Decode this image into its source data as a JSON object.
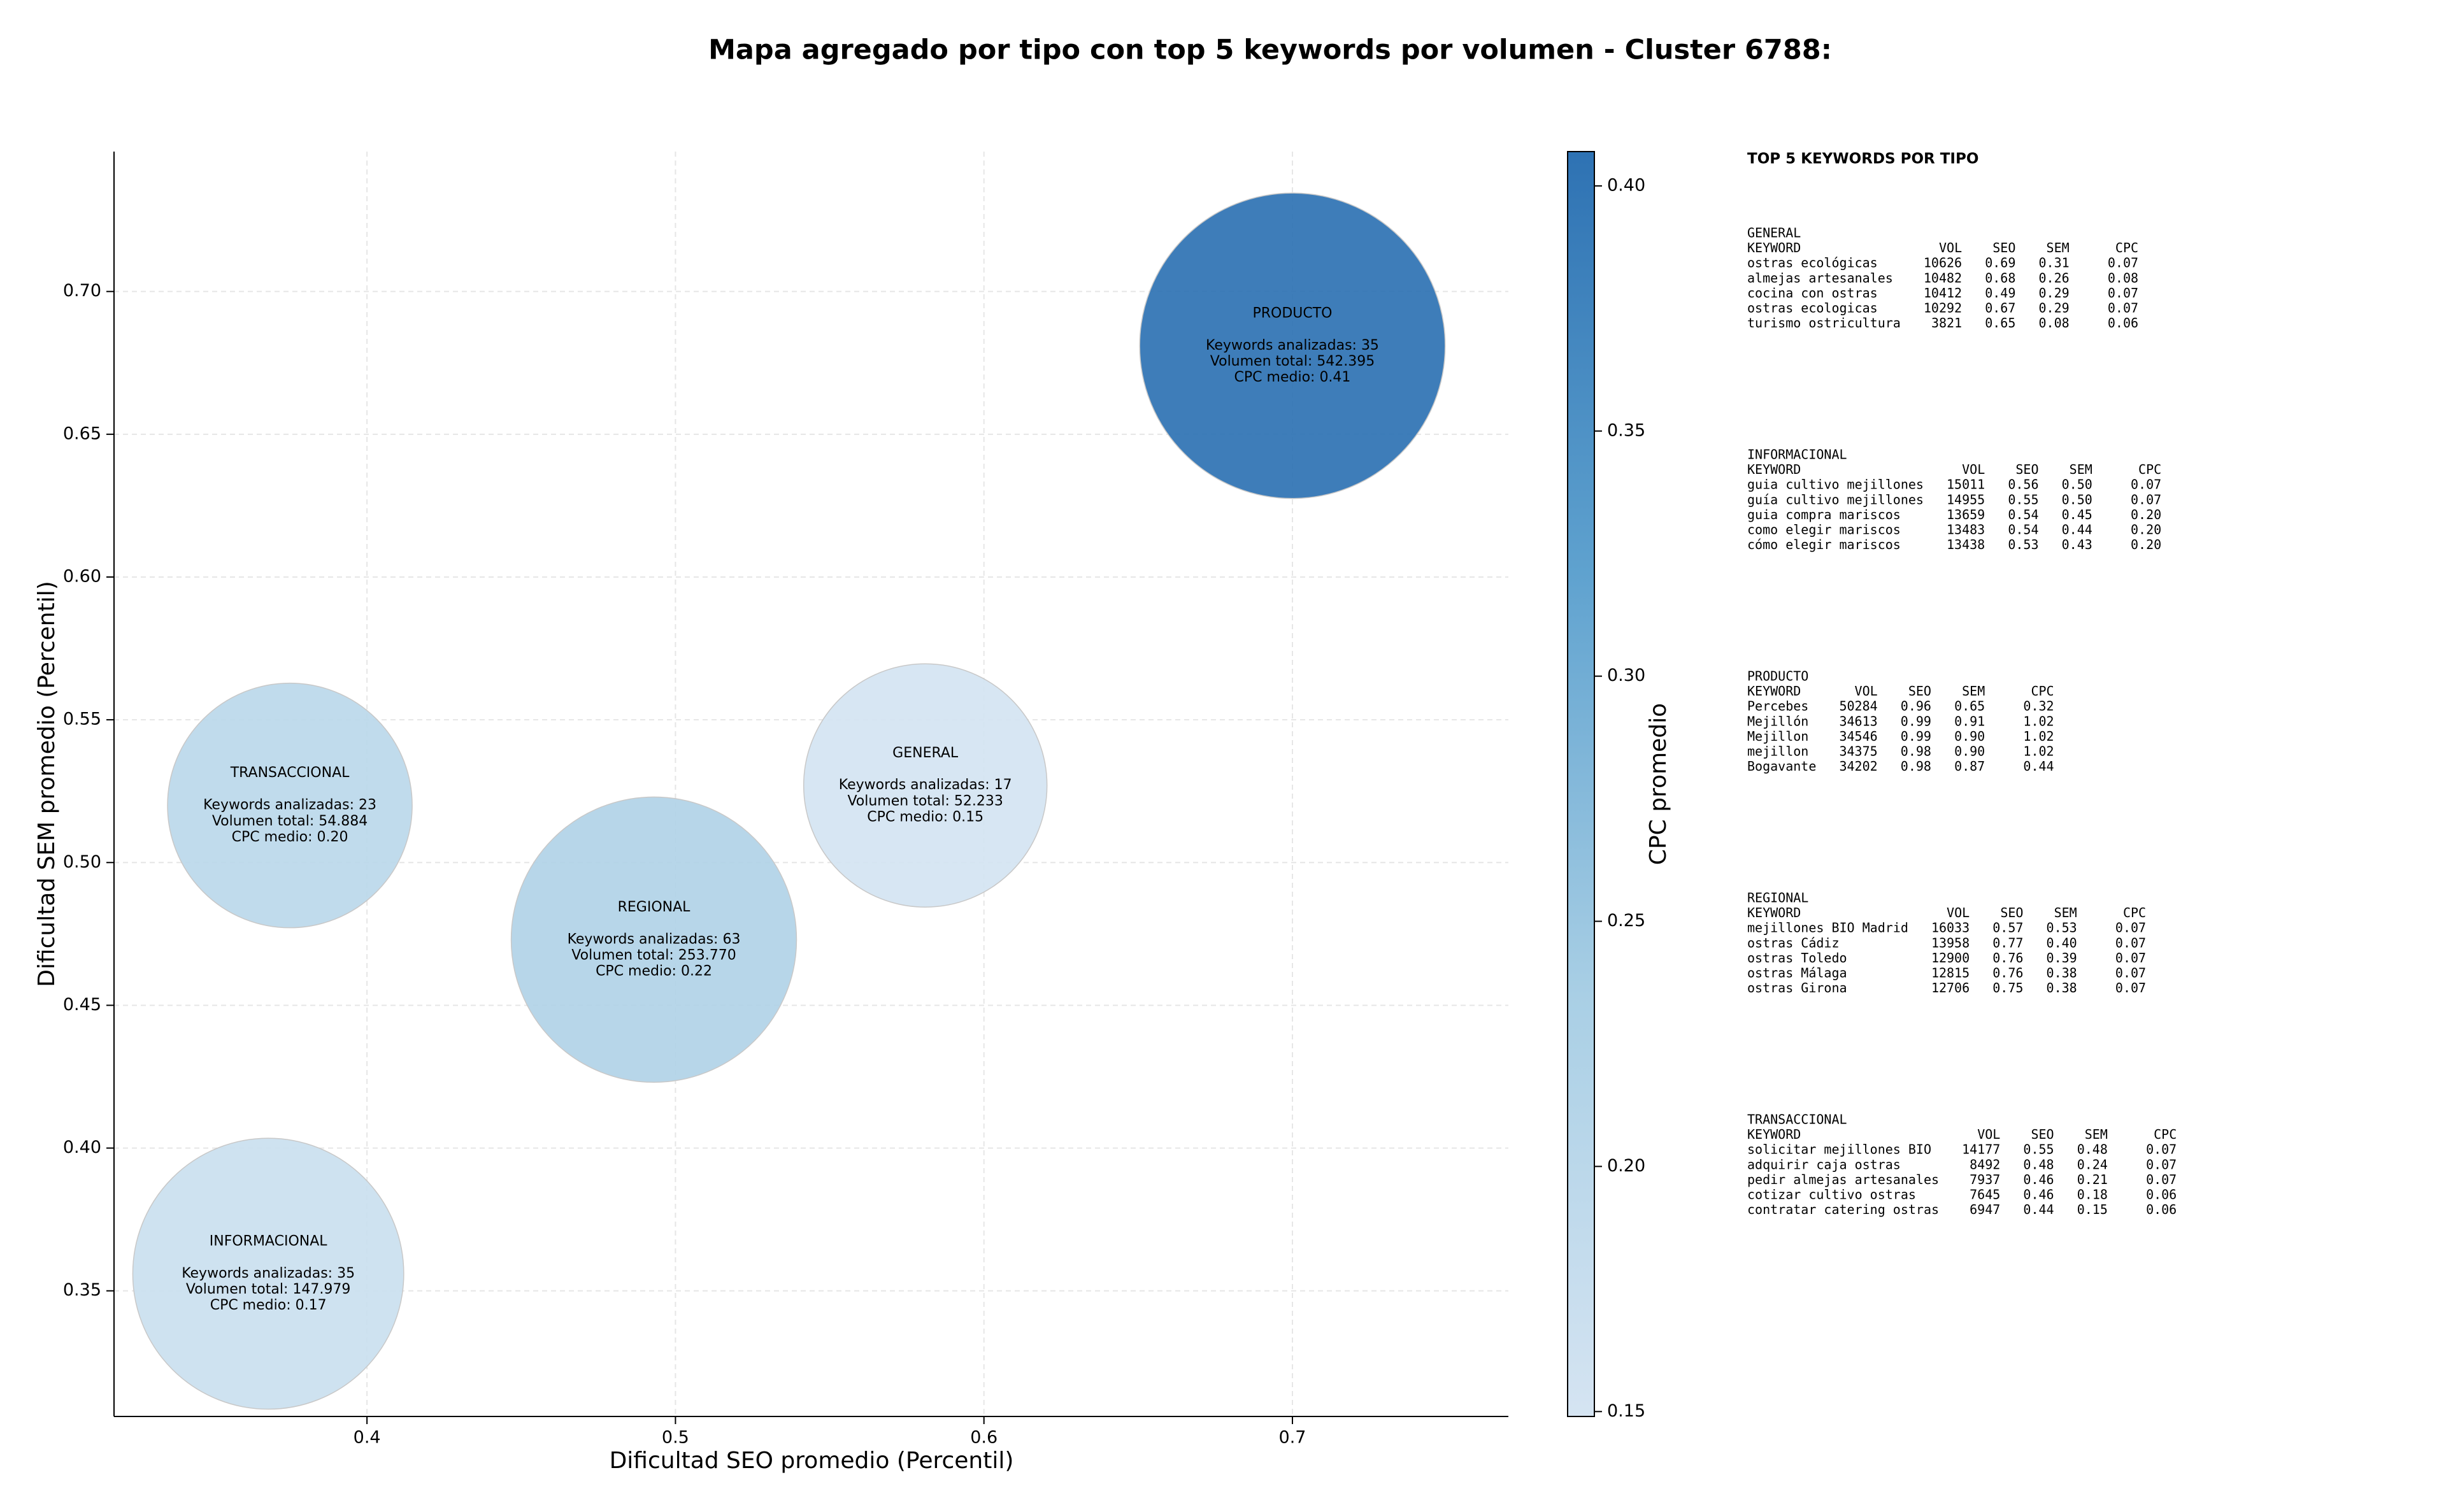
{
  "chart_data": {
    "type": "bubble",
    "title": "Mapa agregado por tipo con top 5 keywords por volumen - Cluster 6788:",
    "xlabel": "Dificultad SEO promedio (Percentil)",
    "ylabel": "Dificultad SEM promedio (Percentil)",
    "xlim": [
      0.318,
      0.77
    ],
    "ylim": [
      0.306,
      0.749
    ],
    "xticks": [
      0.4,
      0.5,
      0.6,
      0.7
    ],
    "yticks": [
      0.35,
      {
        "value": 0.4,
        "label": "0.40"
      },
      0.45,
      {
        "value": 0.5,
        "label": "0.50"
      },
      0.55,
      {
        "value": 0.6,
        "label": "0.60"
      },
      0.65,
      {
        "value": 0.7,
        "label": "0.70"
      }
    ],
    "grid": true,
    "colorbar": {
      "label": "CPC promedio",
      "clim": [
        0.149,
        0.407
      ],
      "ticks": [
        0.15,
        {
          "value": 0.2,
          "label": "0.20"
        },
        0.25,
        {
          "value": 0.3,
          "label": "0.30"
        },
        0.35,
        {
          "value": 0.4,
          "label": "0.40"
        }
      ],
      "colormap": [
        "#d5e4f2",
        "#a9cfe5",
        "#5fa2cf",
        "#2e72b3"
      ]
    },
    "points": [
      {
        "name": "PRODUCTO",
        "x": 0.7,
        "y": 0.681,
        "volume": 542395,
        "cpc": 0.41,
        "lines": [
          "Keywords analizadas: 35",
          "Volumen total: 542.395",
          "CPC medio: 0.41"
        ]
      },
      {
        "name": "GENERAL",
        "x": 0.581,
        "y": 0.527,
        "volume": 52233,
        "cpc": 0.15,
        "lines": [
          "Keywords analizadas: 17",
          "Volumen total: 52.233",
          "CPC medio: 0.15"
        ]
      },
      {
        "name": "TRANSACCIONAL",
        "x": 0.375,
        "y": 0.52,
        "volume": 54884,
        "cpc": 0.2,
        "lines": [
          "Keywords analizadas: 23",
          "Volumen total: 54.884",
          "CPC medio: 0.20"
        ]
      },
      {
        "name": "REGIONAL",
        "x": 0.493,
        "y": 0.473,
        "volume": 253770,
        "cpc": 0.22,
        "lines": [
          "Keywords analizadas: 63",
          "Volumen total: 253.770",
          "CPC medio: 0.22"
        ]
      },
      {
        "name": "INFORMACIONAL",
        "x": 0.368,
        "y": 0.356,
        "volume": 147979,
        "cpc": 0.17,
        "lines": [
          "Keywords analizadas: 35",
          "Volumen total: 147.979",
          "CPC medio: 0.17"
        ]
      }
    ]
  },
  "panel": {
    "title": "TOP 5 KEYWORDS POR TIPO",
    "headers": [
      "KEYWORD",
      "VOL",
      "SEO",
      "SEM",
      "CPC"
    ],
    "sections": [
      {
        "name": "GENERAL",
        "rows": [
          [
            "ostras ecológicas",
            "10626",
            "0.69",
            "0.31",
            "0.07"
          ],
          [
            "almejas artesanales",
            "10482",
            "0.68",
            "0.26",
            "0.08"
          ],
          [
            "cocina con ostras",
            "10412",
            "0.49",
            "0.29",
            "0.07"
          ],
          [
            "ostras ecologicas",
            "10292",
            "0.67",
            "0.29",
            "0.07"
          ],
          [
            "turismo ostricultura",
            "3821",
            "0.65",
            "0.08",
            "0.06"
          ]
        ]
      },
      {
        "name": "INFORMACIONAL",
        "rows": [
          [
            "guia cultivo mejillones",
            "15011",
            "0.56",
            "0.50",
            "0.07"
          ],
          [
            "guía cultivo mejillones",
            "14955",
            "0.55",
            "0.50",
            "0.07"
          ],
          [
            "guia compra mariscos",
            "13659",
            "0.54",
            "0.45",
            "0.20"
          ],
          [
            "como elegir mariscos",
            "13483",
            "0.54",
            "0.44",
            "0.20"
          ],
          [
            "cómo elegir mariscos",
            "13438",
            "0.53",
            "0.43",
            "0.20"
          ]
        ]
      },
      {
        "name": "PRODUCTO",
        "rows": [
          [
            "Percebes",
            "50284",
            "0.96",
            "0.65",
            "0.32"
          ],
          [
            "Mejillón",
            "34613",
            "0.99",
            "0.91",
            "1.02"
          ],
          [
            "Mejillon",
            "34546",
            "0.99",
            "0.90",
            "1.02"
          ],
          [
            "mejillon",
            "34375",
            "0.98",
            "0.90",
            "1.02"
          ],
          [
            "Bogavante",
            "34202",
            "0.98",
            "0.87",
            "0.44"
          ]
        ]
      },
      {
        "name": "REGIONAL",
        "rows": [
          [
            "mejillones BIO Madrid",
            "16033",
            "0.57",
            "0.53",
            "0.07"
          ],
          [
            "ostras Cádiz",
            "13958",
            "0.77",
            "0.40",
            "0.07"
          ],
          [
            "ostras Toledo",
            "12900",
            "0.76",
            "0.39",
            "0.07"
          ],
          [
            "ostras Málaga",
            "12815",
            "0.76",
            "0.38",
            "0.07"
          ],
          [
            "ostras Girona",
            "12706",
            "0.75",
            "0.38",
            "0.07"
          ]
        ]
      },
      {
        "name": "TRANSACCIONAL",
        "rows": [
          [
            "solicitar mejillones BIO",
            "14177",
            "0.55",
            "0.48",
            "0.07"
          ],
          [
            "adquirir caja ostras",
            "8492",
            "0.48",
            "0.24",
            "0.07"
          ],
          [
            "pedir almejas artesanales",
            "7937",
            "0.46",
            "0.21",
            "0.07"
          ],
          [
            "cotizar cultivo ostras",
            "7645",
            "0.46",
            "0.18",
            "0.06"
          ],
          [
            "contratar catering ostras",
            "6947",
            "0.44",
            "0.15",
            "0.06"
          ]
        ]
      }
    ]
  }
}
